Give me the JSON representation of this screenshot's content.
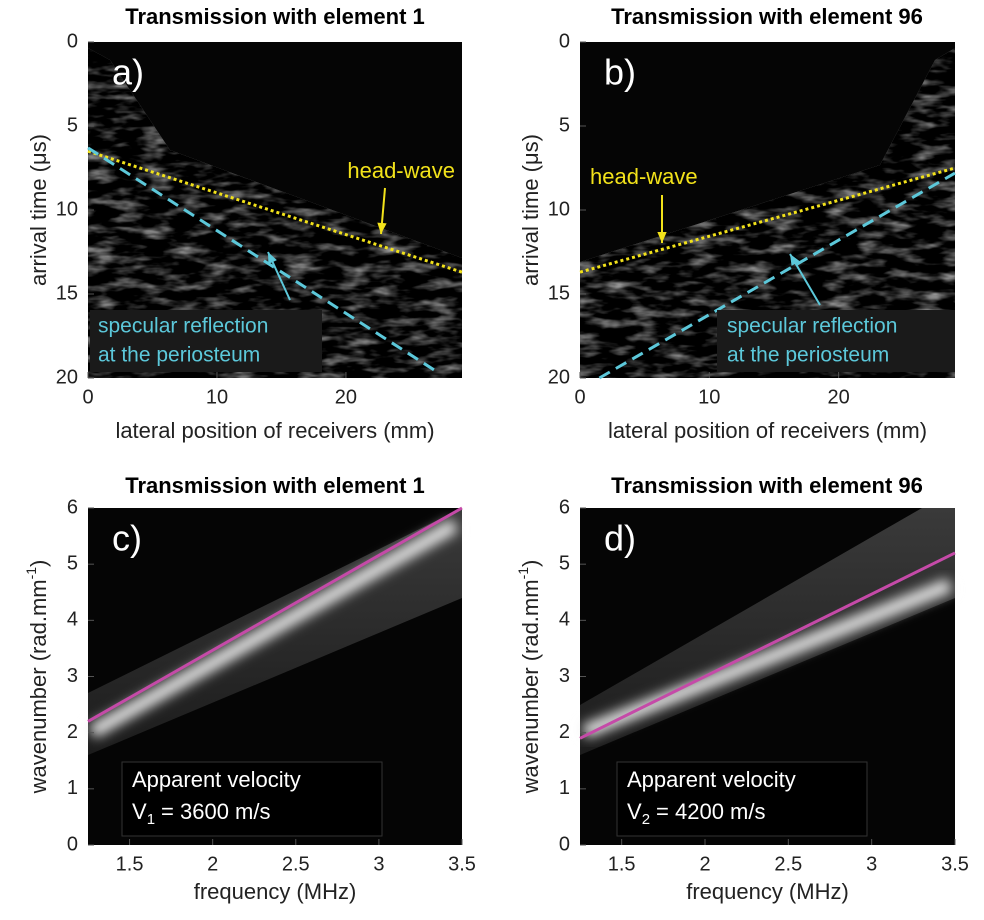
{
  "chart_data": [
    {
      "type": "line",
      "title": "Transmission with element 1",
      "panel_label": "a)",
      "x_label": "lateral position of receivers (mm)",
      "y_label": "arrival time (μs)",
      "xlim": [
        0,
        29
      ],
      "ylim": [
        0,
        20
      ],
      "y_reversed": true,
      "xticks": [
        0,
        10,
        20
      ],
      "yticks": [
        0,
        5,
        10,
        15,
        20
      ],
      "series": [
        {
          "color": "#f2e21a",
          "style": "dotted",
          "x": [
            0,
            29
          ],
          "values": [
            6.5,
            13.7
          ]
        },
        {
          "color": "#5cc8da",
          "style": "dashed",
          "x": [
            0,
            27
          ],
          "values": [
            6.3,
            19.6
          ]
        }
      ],
      "annotations": {
        "head_wave": "head-wave",
        "specular": [
          "specular reflection",
          "at the periosteum"
        ]
      }
    },
    {
      "type": "line",
      "title": "Transmission with element 96",
      "panel_label": "b)",
      "x_label": "lateral position of receivers (mm)",
      "y_label": "arrival time (μs)",
      "xlim": [
        0,
        29
      ],
      "ylim": [
        0,
        20
      ],
      "y_reversed": true,
      "xticks": [
        0,
        10,
        20
      ],
      "yticks": [
        0,
        5,
        10,
        15,
        20
      ],
      "series": [
        {
          "color": "#f2e21a",
          "style": "dotted",
          "x": [
            0,
            29
          ],
          "values": [
            13.7,
            7.5
          ]
        },
        {
          "color": "#5cc8da",
          "style": "dashed",
          "x": [
            1.5,
            29
          ],
          "values": [
            20,
            7.8
          ]
        }
      ],
      "annotations": {
        "head_wave": "head-wave",
        "specular": [
          "specular reflection",
          "at the periosteum"
        ]
      }
    },
    {
      "type": "line",
      "title": "Transmission with element 1",
      "panel_label": "c)",
      "x_label": "frequency (MHz)",
      "y_label": {
        "text": "wavenumber  (rad.mm",
        "superscript": "-1",
        "close": ")"
      },
      "xlim": [
        1.25,
        3.5
      ],
      "ylim": [
        0,
        6
      ],
      "y_reversed": false,
      "xticks": [
        1.5,
        2,
        2.5,
        3,
        3.5
      ],
      "yticks": [
        0,
        1,
        2,
        3,
        4,
        5,
        6
      ],
      "series": [
        {
          "color": "#c54aa8",
          "style": "solid",
          "x": [
            1.25,
            3.5
          ],
          "values": [
            2.2,
            6.0
          ]
        }
      ],
      "velocity": {
        "line1": "Apparent velocity",
        "symbol": "V",
        "subscript": "1",
        "value": "= 3600 m/s"
      }
    },
    {
      "type": "line",
      "title": "Transmission with element 96",
      "panel_label": "d)",
      "x_label": "frequency (MHz)",
      "y_label": {
        "text": "wavenumber  (rad.mm",
        "superscript": "-1",
        "close": ")"
      },
      "xlim": [
        1.25,
        3.5
      ],
      "ylim": [
        0,
        6
      ],
      "y_reversed": false,
      "xticks": [
        1.5,
        2,
        2.5,
        3,
        3.5
      ],
      "yticks": [
        0,
        1,
        2,
        3,
        4,
        5,
        6
      ],
      "series": [
        {
          "color": "#c54aa8",
          "style": "solid",
          "x": [
            1.25,
            3.5
          ],
          "values": [
            1.9,
            5.2
          ]
        }
      ],
      "velocity": {
        "line1": "Apparent velocity",
        "symbol": "V",
        "subscript": "2",
        "value": "= 4200 m/s"
      }
    }
  ]
}
